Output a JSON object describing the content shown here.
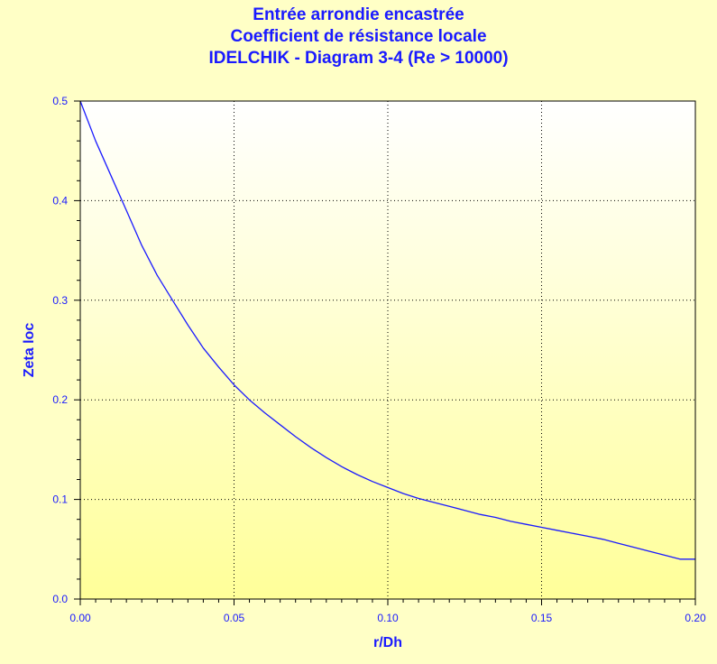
{
  "chart_data": {
    "type": "line",
    "title": [
      "Entrée arrondie encastrée",
      "Coefficient de résistance locale",
      "IDELCHIK - Diagram 3-4 (Re > 10000)"
    ],
    "xlabel": "r/Dh",
    "ylabel": "Zeta loc",
    "xlim": [
      0.0,
      0.2
    ],
    "ylim": [
      0.0,
      0.5
    ],
    "x_ticks": [
      "0.00",
      "0.05",
      "0.10",
      "0.15",
      "0.20"
    ],
    "y_ticks": [
      "0.0",
      "0.1",
      "0.2",
      "0.3",
      "0.4",
      "0.5"
    ],
    "grid": true,
    "series": [
      {
        "color": "#1a1aff",
        "x": [
          0.0,
          0.005,
          0.01,
          0.015,
          0.02,
          0.025,
          0.03,
          0.035,
          0.04,
          0.045,
          0.05,
          0.055,
          0.06,
          0.065,
          0.07,
          0.075,
          0.08,
          0.085,
          0.09,
          0.095,
          0.1,
          0.105,
          0.11,
          0.115,
          0.12,
          0.125,
          0.13,
          0.135,
          0.14,
          0.145,
          0.15,
          0.155,
          0.16,
          0.165,
          0.17,
          0.175,
          0.18,
          0.185,
          0.19,
          0.195,
          0.2
        ],
        "y": [
          0.5,
          0.46,
          0.425,
          0.39,
          0.355,
          0.325,
          0.3,
          0.275,
          0.252,
          0.233,
          0.215,
          0.2,
          0.187,
          0.175,
          0.163,
          0.152,
          0.142,
          0.133,
          0.125,
          0.118,
          0.112,
          0.106,
          0.101,
          0.097,
          0.093,
          0.089,
          0.085,
          0.082,
          0.078,
          0.075,
          0.072,
          0.069,
          0.066,
          0.063,
          0.06,
          0.056,
          0.052,
          0.048,
          0.044,
          0.04,
          0.04
        ]
      }
    ]
  },
  "colors": {
    "background": "#ffffc6",
    "plot_top": "#ffffff",
    "plot_bottom": "#ffff99",
    "text": "#1a1aff",
    "axis": "#000000",
    "grid": "#000000"
  }
}
